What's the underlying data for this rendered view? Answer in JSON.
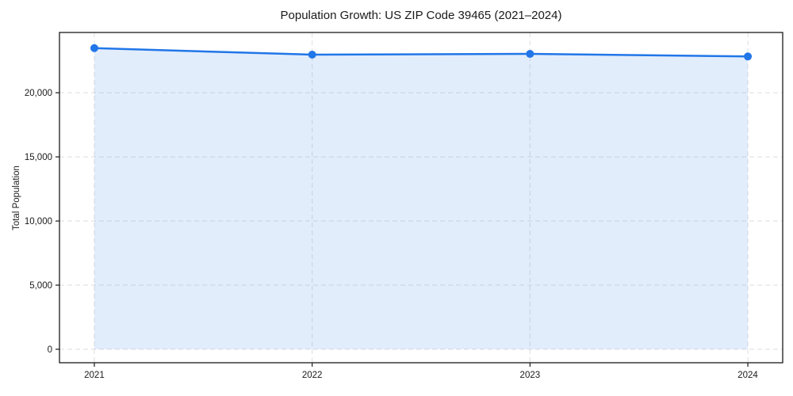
{
  "page": {
    "background": "#ffffff"
  },
  "chart_data": {
    "type": "area",
    "title": "Population Growth: US ZIP Code 39465 (2021–2024)",
    "xlabel": "",
    "ylabel": "Total Population",
    "categories": [
      "2021",
      "2022",
      "2023",
      "2024"
    ],
    "x": [
      2021,
      2022,
      2023,
      2024
    ],
    "series": [
      {
        "name": "Total Population",
        "values": [
          23480,
          22970,
          23030,
          22830
        ]
      }
    ],
    "xlim": [
      2020.84,
      2024.16
    ],
    "ylim": [
      -1050,
      24700
    ],
    "x_ticks": [
      2021,
      2022,
      2023,
      2024
    ],
    "x_tick_labels": [
      "2021",
      "2022",
      "2023",
      "2024"
    ],
    "y_ticks": [
      0,
      5000,
      10000,
      15000,
      20000
    ],
    "y_tick_labels": [
      "0",
      "5,000",
      "10,000",
      "15,000",
      "20,000"
    ],
    "grid": true,
    "legend_position": "none",
    "colors": {
      "line": "#2176e8",
      "marker": "#2176e8",
      "fill": "#2176e8",
      "fill_opacity": "0.13",
      "grid": "#d9d9d9",
      "axis": "#1a1a1a",
      "text": "#1a1a1a"
    }
  }
}
